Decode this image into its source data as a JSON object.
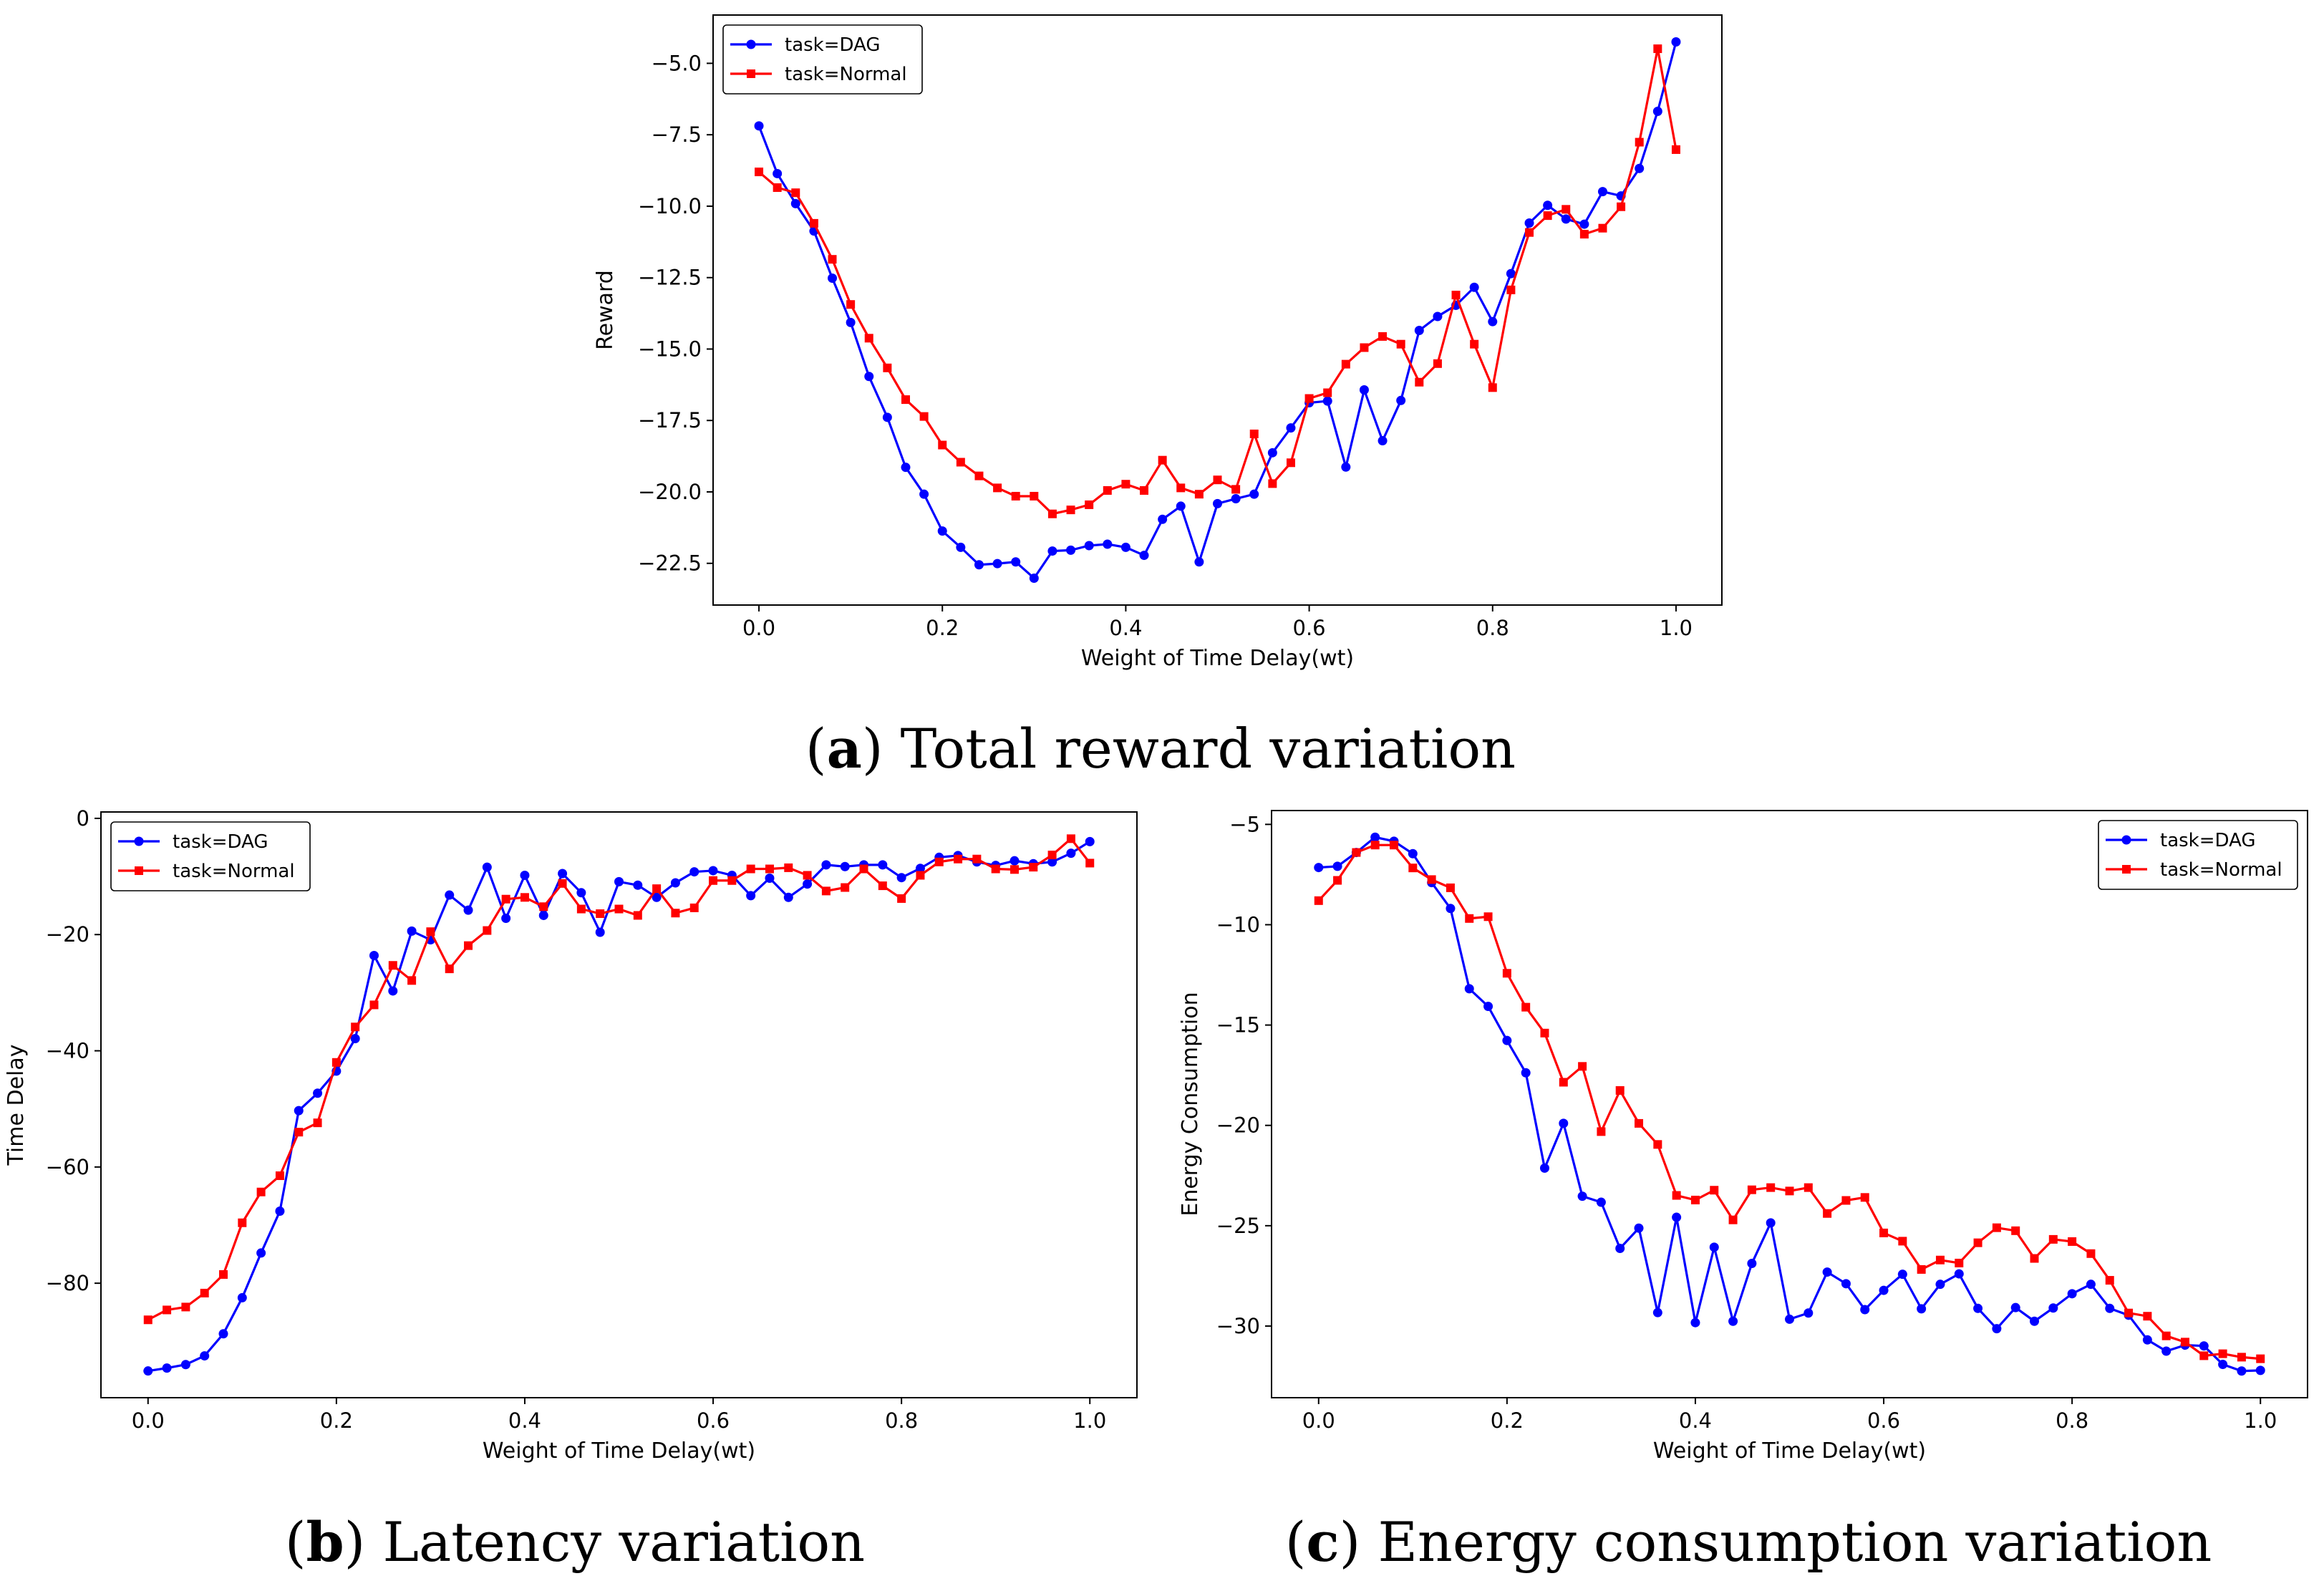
{
  "chart_data": [
    {
      "id": "a",
      "type": "line",
      "caption_letter": "a",
      "caption_text": " Total reward variation",
      "xlabel": "Weight of Time Delay(wt)",
      "ylabel": "Reward",
      "xlim": [
        -0.05,
        1.05
      ],
      "ylim": [
        -23.96,
        -3.31
      ],
      "xticks": [
        0.0,
        0.2,
        0.4,
        0.6,
        0.8,
        1.0
      ],
      "xtick_labels": [
        "0.0",
        "0.2",
        "0.4",
        "0.6",
        "0.8",
        "1.0"
      ],
      "yticks": [
        -5,
        -7.5,
        -10,
        -12.5,
        -15,
        -17.5,
        -20,
        -22.5
      ],
      "ytick_labels": [
        "−5.0",
        "−7.5",
        "−10.0",
        "−12.5",
        "−15.0",
        "−17.5",
        "−20.0",
        "−22.5"
      ],
      "legend": "upper-left",
      "grid": false,
      "series": [
        {
          "name": "task=DAG",
          "color": "#0000ff",
          "marker": "circle",
          "values": [
            -7.19,
            -8.86,
            -9.91,
            -10.87,
            -12.52,
            -14.07,
            -15.96,
            -17.39,
            -19.14,
            -20.08,
            -21.37,
            -21.94,
            -22.55,
            -22.51,
            -22.45,
            -23.02,
            -22.07,
            -22.04,
            -21.88,
            -21.83,
            -21.94,
            -22.22,
            -20.96,
            -20.5,
            -22.45,
            -20.41,
            -20.24,
            -20.08,
            -18.63,
            -17.76,
            -16.88,
            -16.82,
            -19.13,
            -16.43,
            -18.21,
            -16.8,
            -14.35,
            -13.86,
            -13.47,
            -12.84,
            -14.04,
            -12.36,
            -10.59,
            -9.97,
            -10.45,
            -10.63,
            -9.49,
            -9.64,
            -8.68,
            -6.68,
            -4.25
          ]
        },
        {
          "name": "task=Normal",
          "color": "#ff0000",
          "marker": "square",
          "values": [
            -8.8,
            -9.35,
            -9.53,
            -10.6,
            -11.86,
            -13.44,
            -14.62,
            -15.66,
            -16.77,
            -17.36,
            -18.36,
            -18.96,
            -19.44,
            -19.86,
            -20.15,
            -20.15,
            -20.77,
            -20.63,
            -20.45,
            -19.95,
            -19.73,
            -19.95,
            -18.89,
            -19.86,
            -20.08,
            -19.58,
            -19.91,
            -17.97,
            -19.71,
            -18.98,
            -16.73,
            -16.53,
            -15.53,
            -14.95,
            -14.56,
            -14.83,
            -16.16,
            -15.51,
            -13.11,
            -14.83,
            -16.35,
            -12.93,
            -10.92,
            -10.33,
            -10.11,
            -10.98,
            -10.77,
            -10.02,
            -7.76,
            -4.49,
            -8.02
          ]
        }
      ]
    },
    {
      "id": "b",
      "type": "line",
      "caption_letter": "b",
      "caption_text": " Latency variation",
      "xlabel": "Weight of Time Delay(wt)",
      "ylabel": "Time Delay",
      "xlim": [
        -0.05,
        1.05
      ],
      "ylim": [
        -99.7,
        1.1
      ],
      "xticks": [
        0.0,
        0.2,
        0.4,
        0.6,
        0.8,
        1.0
      ],
      "xtick_labels": [
        "0.0",
        "0.2",
        "0.4",
        "0.6",
        "0.8",
        "1.0"
      ],
      "yticks": [
        0,
        -20,
        -40,
        -60,
        -80
      ],
      "ytick_labels": [
        "0",
        "−20",
        "−40",
        "−60",
        "−80"
      ],
      "legend": "upper-left",
      "grid": false,
      "series": [
        {
          "name": "task=DAG",
          "color": "#0000ff",
          "marker": "circle",
          "values": [
            -95.1,
            -94.6,
            -94.0,
            -92.5,
            -88.7,
            -82.5,
            -74.8,
            -67.6,
            -50.3,
            -47.3,
            -43.5,
            -37.9,
            -23.6,
            -29.7,
            -19.4,
            -20.9,
            -13.2,
            -15.8,
            -8.4,
            -17.2,
            -9.8,
            -16.7,
            -9.5,
            -12.8,
            -19.6,
            -10.9,
            -11.5,
            -13.6,
            -11.1,
            -9.2,
            -9.0,
            -9.8,
            -13.3,
            -10.3,
            -13.6,
            -11.3,
            -8.0,
            -8.3,
            -8.0,
            -8.0,
            -10.2,
            -8.6,
            -6.7,
            -6.4,
            -7.5,
            -8.1,
            -7.3,
            -7.8,
            -7.5,
            -6.0,
            -4.0
          ]
        },
        {
          "name": "task=Normal",
          "color": "#ff0000",
          "marker": "square",
          "values": [
            -86.3,
            -84.6,
            -84.1,
            -81.7,
            -78.5,
            -69.6,
            -64.3,
            -61.5,
            -54.0,
            -52.4,
            -42.0,
            -35.9,
            -32.1,
            -25.3,
            -27.9,
            -19.5,
            -25.9,
            -21.9,
            -19.3,
            -13.9,
            -13.6,
            -15.2,
            -11.2,
            -15.6,
            -16.4,
            -15.6,
            -16.7,
            -12.1,
            -16.3,
            -15.4,
            -10.7,
            -10.7,
            -8.7,
            -8.7,
            -8.5,
            -9.8,
            -12.5,
            -11.9,
            -8.7,
            -11.6,
            -13.8,
            -9.8,
            -7.5,
            -7.0,
            -7.0,
            -8.7,
            -8.8,
            -8.4,
            -6.3,
            -3.5,
            -7.7
          ]
        }
      ]
    },
    {
      "id": "c",
      "type": "line",
      "caption_letter": "c",
      "caption_text": " Energy consumption variation",
      "xlabel": "Weight of Time Delay(wt)",
      "ylabel": "Energy Consumption",
      "xlim": [
        -0.05,
        1.05
      ],
      "ylim": [
        -33.57,
        -4.31
      ],
      "xticks": [
        0.0,
        0.2,
        0.4,
        0.6,
        0.8,
        1.0
      ],
      "xtick_labels": [
        "0.0",
        "0.2",
        "0.4",
        "0.6",
        "0.8",
        "1.0"
      ],
      "yticks": [
        -5,
        -10,
        -15,
        -20,
        -25,
        -30
      ],
      "ytick_labels": [
        "−5",
        "−10",
        "−15",
        "−20",
        "−25",
        "−30"
      ],
      "legend": "upper-right",
      "grid": false,
      "series": [
        {
          "name": "task=DAG",
          "color": "#0000ff",
          "marker": "circle",
          "values": [
            -7.15,
            -7.09,
            -6.4,
            -5.64,
            -5.84,
            -6.46,
            -7.9,
            -9.19,
            -13.19,
            -14.07,
            -15.77,
            -17.38,
            -22.13,
            -19.9,
            -23.53,
            -23.83,
            -26.13,
            -25.12,
            -29.33,
            -24.58,
            -29.83,
            -26.07,
            -29.76,
            -26.88,
            -24.86,
            -29.66,
            -29.35,
            -27.31,
            -27.89,
            -29.18,
            -28.22,
            -27.42,
            -29.14,
            -27.92,
            -27.4,
            -29.12,
            -30.13,
            -29.08,
            -29.76,
            -29.1,
            -28.39,
            -27.92,
            -29.12,
            -29.46,
            -30.69,
            -31.25,
            -30.95,
            -30.99,
            -31.91,
            -32.24,
            -32.21
          ]
        },
        {
          "name": "task=Normal",
          "color": "#ff0000",
          "marker": "square",
          "values": [
            -8.8,
            -7.79,
            -6.4,
            -6.03,
            -6.03,
            -7.17,
            -7.75,
            -8.16,
            -9.69,
            -9.6,
            -12.42,
            -14.11,
            -15.4,
            -17.85,
            -17.06,
            -20.31,
            -18.26,
            -19.9,
            -20.95,
            -23.49,
            -23.72,
            -23.23,
            -24.71,
            -23.21,
            -23.1,
            -23.27,
            -23.1,
            -24.39,
            -23.74,
            -23.59,
            -25.36,
            -25.77,
            -27.18,
            -26.71,
            -26.86,
            -25.85,
            -25.1,
            -25.25,
            -26.63,
            -25.68,
            -25.79,
            -26.39,
            -27.72,
            -29.35,
            -29.51,
            -30.49,
            -30.8,
            -31.48,
            -31.38,
            -31.55,
            -31.63
          ]
        }
      ]
    }
  ]
}
